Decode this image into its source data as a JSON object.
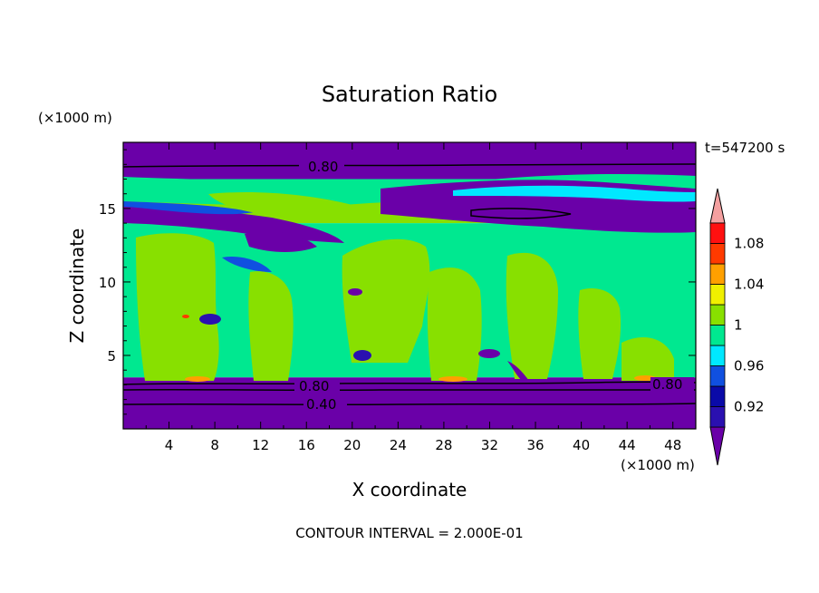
{
  "chart_data": {
    "type": "heatmap",
    "title": "Saturation Ratio",
    "xlabel": "X coordinate",
    "ylabel": "Z coordinate",
    "x_unit": "(×1000 m)",
    "y_unit": "(×1000 m)",
    "time_label": "t=547200 s",
    "footer": "CONTOUR INTERVAL = 2.000E-01",
    "xlim": [
      0,
      50
    ],
    "ylim": [
      0,
      19.5
    ],
    "xticks": [
      "4",
      "8",
      "12",
      "16",
      "20",
      "24",
      "28",
      "32",
      "36",
      "40",
      "44",
      "48"
    ],
    "yticks": [
      "5",
      "10",
      "15"
    ],
    "colorbar_levels": [
      0.9,
      0.92,
      0.94,
      0.96,
      0.98,
      1.0,
      1.02,
      1.04,
      1.06,
      1.08,
      1.1
    ],
    "colorbar_labels": [
      "0.92",
      "0.96",
      "1",
      "1.04",
      "1.08"
    ],
    "colorbar_colors": [
      "#6a00a8",
      "#2a10b0",
      "#0a0aa8",
      "#1050e0",
      "#00e8ff",
      "#00e890",
      "#88e000",
      "#f0f000",
      "#ffa000",
      "#ff3a00",
      "#ff1010",
      "#f4a0a0"
    ],
    "contour_labels": [
      "0.80",
      "0.80",
      "0.80",
      "0.40"
    ],
    "bands": [
      {
        "z_top": 19.5,
        "z_bottom": 17.0,
        "color": "#6a00a8"
      },
      {
        "z_top": 17.0,
        "z_bottom": 16.2,
        "color": "#00e890"
      },
      {
        "z_top": 16.2,
        "z_bottom": 14.0,
        "color": "#88e000"
      },
      {
        "z_top": 14.0,
        "z_bottom": 3.5,
        "color": "#00e890"
      },
      {
        "z_top": 3.5,
        "z_bottom": 0,
        "color": "#6a00a8"
      }
    ]
  }
}
